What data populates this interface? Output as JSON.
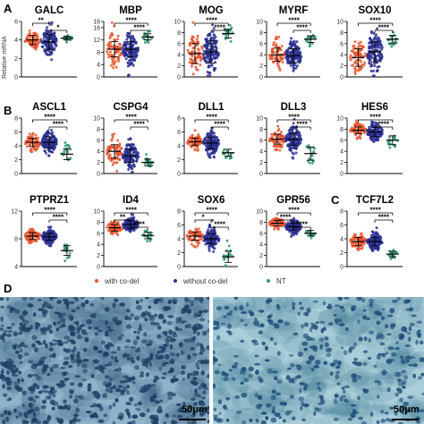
{
  "panel_labels": {
    "a": "A",
    "b": "B",
    "c": "C",
    "d": "D"
  },
  "y_axis_partial": "Relative mRNA",
  "legend": [
    {
      "label": "with co-del",
      "color": "#e8562f"
    },
    {
      "label": "without co-del",
      "color": "#2a2f8f"
    },
    {
      "label": "NT",
      "color": "#2e9a6b"
    }
  ],
  "scale_bar_left": "50μm",
  "scale_bar_right": "50μm",
  "chart_data": [
    {
      "type": "scatter",
      "title": "GALC",
      "ylim": [
        0,
        6
      ],
      "yticks": [
        0,
        2,
        4,
        6
      ],
      "groups": [
        "with co-del",
        "without co-del",
        "NT"
      ],
      "means": [
        4.0,
        3.8,
        4.2
      ],
      "sd": [
        0.5,
        0.8,
        0.2
      ],
      "sig": [
        {
          "a": 0,
          "b": 1,
          "label": "**"
        },
        {
          "a": 1,
          "b": 2,
          "label": "*"
        }
      ]
    },
    {
      "type": "scatter",
      "title": "MBP",
      "ylim": [
        0,
        18
      ],
      "yticks": [
        0,
        4,
        8,
        12,
        16,
        18
      ],
      "groups": [
        "with co-del",
        "without co-del",
        "NT"
      ],
      "means": [
        9,
        9,
        13
      ],
      "sd": [
        2.5,
        2.5,
        1
      ],
      "sig": [
        {
          "a": 0,
          "b": 2,
          "label": "****"
        },
        {
          "a": 1,
          "b": 2,
          "label": "****"
        }
      ]
    },
    {
      "type": "scatter",
      "title": "MOG",
      "ylim": [
        0,
        10
      ],
      "yticks": [
        0,
        2,
        4,
        6,
        8,
        10
      ],
      "groups": [
        "with co-del",
        "without co-del",
        "NT"
      ],
      "means": [
        4.2,
        4.5,
        7.8
      ],
      "sd": [
        1.8,
        2,
        0.8
      ],
      "sig": [
        {
          "a": 0,
          "b": 2,
          "label": "****"
        },
        {
          "a": 1,
          "b": 2,
          "label": "****"
        }
      ]
    },
    {
      "type": "scatter",
      "title": "MYRF",
      "ylim": [
        0,
        10
      ],
      "yticks": [
        0,
        2,
        4,
        6,
        8,
        10
      ],
      "groups": [
        "with co-del",
        "without co-del",
        "NT"
      ],
      "means": [
        4.0,
        3.8,
        6.8
      ],
      "sd": [
        1.2,
        1.3,
        0.6
      ],
      "sig": [
        {
          "a": 0,
          "b": 2,
          "label": "****"
        },
        {
          "a": 1,
          "b": 2,
          "label": "****"
        }
      ]
    },
    {
      "type": "scatter",
      "title": "SOX10",
      "ylim": [
        0,
        10
      ],
      "yticks": [
        0,
        2,
        4,
        6,
        8,
        10
      ],
      "groups": [
        "with co-del",
        "without co-del",
        "NT"
      ],
      "means": [
        3.5,
        4.5,
        6.8
      ],
      "sd": [
        1.6,
        1.8,
        0.7
      ],
      "sig": [
        {
          "a": 0,
          "b": 2,
          "label": "****"
        },
        {
          "a": 1,
          "b": 2,
          "label": "****"
        }
      ]
    },
    {
      "type": "scatter",
      "title": "ASCL1",
      "ylim": [
        0,
        8
      ],
      "yticks": [
        0,
        2,
        4,
        6,
        8
      ],
      "groups": [
        "with co-del",
        "without co-del",
        "NT"
      ],
      "means": [
        4.5,
        4.5,
        2.8
      ],
      "sd": [
        0.6,
        0.8,
        0.8
      ],
      "sig": [
        {
          "a": 0,
          "b": 2,
          "label": "****"
        },
        {
          "a": 1,
          "b": 2,
          "label": "****"
        }
      ]
    },
    {
      "type": "scatter",
      "title": "CSPG4",
      "ylim": [
        0,
        10
      ],
      "yticks": [
        0,
        2,
        4,
        6,
        8,
        10
      ],
      "groups": [
        "with co-del",
        "without co-del",
        "NT"
      ],
      "means": [
        4.0,
        3.2,
        2.0
      ],
      "sd": [
        1.2,
        1.2,
        0.6
      ],
      "sig": [
        {
          "a": 0,
          "b": 2,
          "label": "****"
        },
        {
          "a": 1,
          "b": 2,
          "label": "****"
        }
      ]
    },
    {
      "type": "scatter",
      "title": "DLL1",
      "ylim": [
        0,
        8
      ],
      "yticks": [
        0,
        2,
        4,
        6,
        8
      ],
      "groups": [
        "with co-del",
        "without co-del",
        "NT"
      ],
      "means": [
        4.6,
        4.4,
        3.0
      ],
      "sd": [
        0.5,
        0.8,
        0.5
      ],
      "sig": [
        {
          "a": 0,
          "b": 2,
          "label": "****"
        },
        {
          "a": 1,
          "b": 2,
          "label": "****"
        }
      ]
    },
    {
      "type": "scatter",
      "title": "DLL3",
      "ylim": [
        0,
        10
      ],
      "yticks": [
        0,
        2,
        4,
        6,
        8,
        10
      ],
      "groups": [
        "with co-del",
        "without co-del",
        "NT"
      ],
      "means": [
        6.2,
        6.2,
        3.6
      ],
      "sd": [
        0.9,
        1.1,
        1.2
      ],
      "sig": [
        {
          "a": 0,
          "b": 2,
          "label": "****"
        },
        {
          "a": 1,
          "b": 2,
          "label": "****"
        }
      ]
    },
    {
      "type": "scatter",
      "title": "HES6",
      "ylim": [
        0,
        10
      ],
      "yticks": [
        0,
        2,
        4,
        6,
        8,
        10
      ],
      "groups": [
        "with co-del",
        "without co-del",
        "NT"
      ],
      "means": [
        7.8,
        7.5,
        6.0
      ],
      "sd": [
        0.6,
        0.8,
        0.8
      ],
      "sig": [
        {
          "a": 0,
          "b": 2,
          "label": "****"
        },
        {
          "a": 1,
          "b": 2,
          "label": "****"
        }
      ]
    },
    {
      "type": "scatter",
      "title": "PTPRZ1",
      "ylim": [
        4,
        12
      ],
      "yticks": [
        4,
        8,
        12
      ],
      "groups": [
        "with co-del",
        "without co-del",
        "NT"
      ],
      "means": [
        8.4,
        8.3,
        6.3
      ],
      "sd": [
        0.5,
        0.5,
        0.7
      ],
      "sig": [
        {
          "a": 0,
          "b": 2,
          "label": "****"
        },
        {
          "a": 1,
          "b": 2,
          "label": "****"
        }
      ]
    },
    {
      "type": "scatter",
      "title": "ID4",
      "ylim": [
        0,
        10
      ],
      "yticks": [
        0,
        2,
        4,
        6,
        8,
        10
      ],
      "groups": [
        "with co-del",
        "without co-del",
        "NT"
      ],
      "means": [
        7.0,
        7.6,
        5.6
      ],
      "sd": [
        0.6,
        0.7,
        0.6
      ],
      "sig": [
        {
          "a": 0,
          "b": 2,
          "label": "****"
        },
        {
          "a": 0,
          "b": 1,
          "label": "**"
        },
        {
          "a": 1,
          "b": 2,
          "label": "****"
        }
      ]
    },
    {
      "type": "scatter",
      "title": "SOX6",
      "ylim": [
        0,
        8
      ],
      "yticks": [
        0,
        2,
        4,
        6,
        8
      ],
      "groups": [
        "with co-del",
        "without co-del",
        "NT"
      ],
      "means": [
        4.4,
        4.0,
        1.4
      ],
      "sd": [
        0.6,
        0.7,
        0.8
      ],
      "sig": [
        {
          "a": 0,
          "b": 2,
          "label": "****"
        },
        {
          "a": 0,
          "b": 1,
          "label": "*"
        },
        {
          "a": 1,
          "b": 2,
          "label": "****"
        }
      ]
    },
    {
      "type": "scatter",
      "title": "GPR56",
      "ylim": [
        0,
        10
      ],
      "yticks": [
        0,
        2,
        4,
        6,
        8,
        10
      ],
      "groups": [
        "with co-del",
        "without co-del",
        "NT"
      ],
      "means": [
        7.8,
        7.2,
        6.0
      ],
      "sd": [
        0.5,
        0.6,
        0.5
      ],
      "sig": [
        {
          "a": 0,
          "b": 2,
          "label": "****"
        },
        {
          "a": 0,
          "b": 1,
          "label": "****"
        },
        {
          "a": 1,
          "b": 2,
          "label": "****"
        }
      ]
    },
    {
      "type": "scatter",
      "title": "TCF7L2",
      "ylim": [
        0,
        8
      ],
      "yticks": [
        0,
        2,
        4,
        6,
        8
      ],
      "groups": [
        "with co-del",
        "without co-del",
        "NT"
      ],
      "means": [
        3.6,
        3.6,
        1.8
      ],
      "sd": [
        0.6,
        0.6,
        0.4
      ],
      "sig": [
        {
          "a": 0,
          "b": 2,
          "label": "****"
        },
        {
          "a": 1,
          "b": 2,
          "label": "****"
        }
      ]
    }
  ]
}
